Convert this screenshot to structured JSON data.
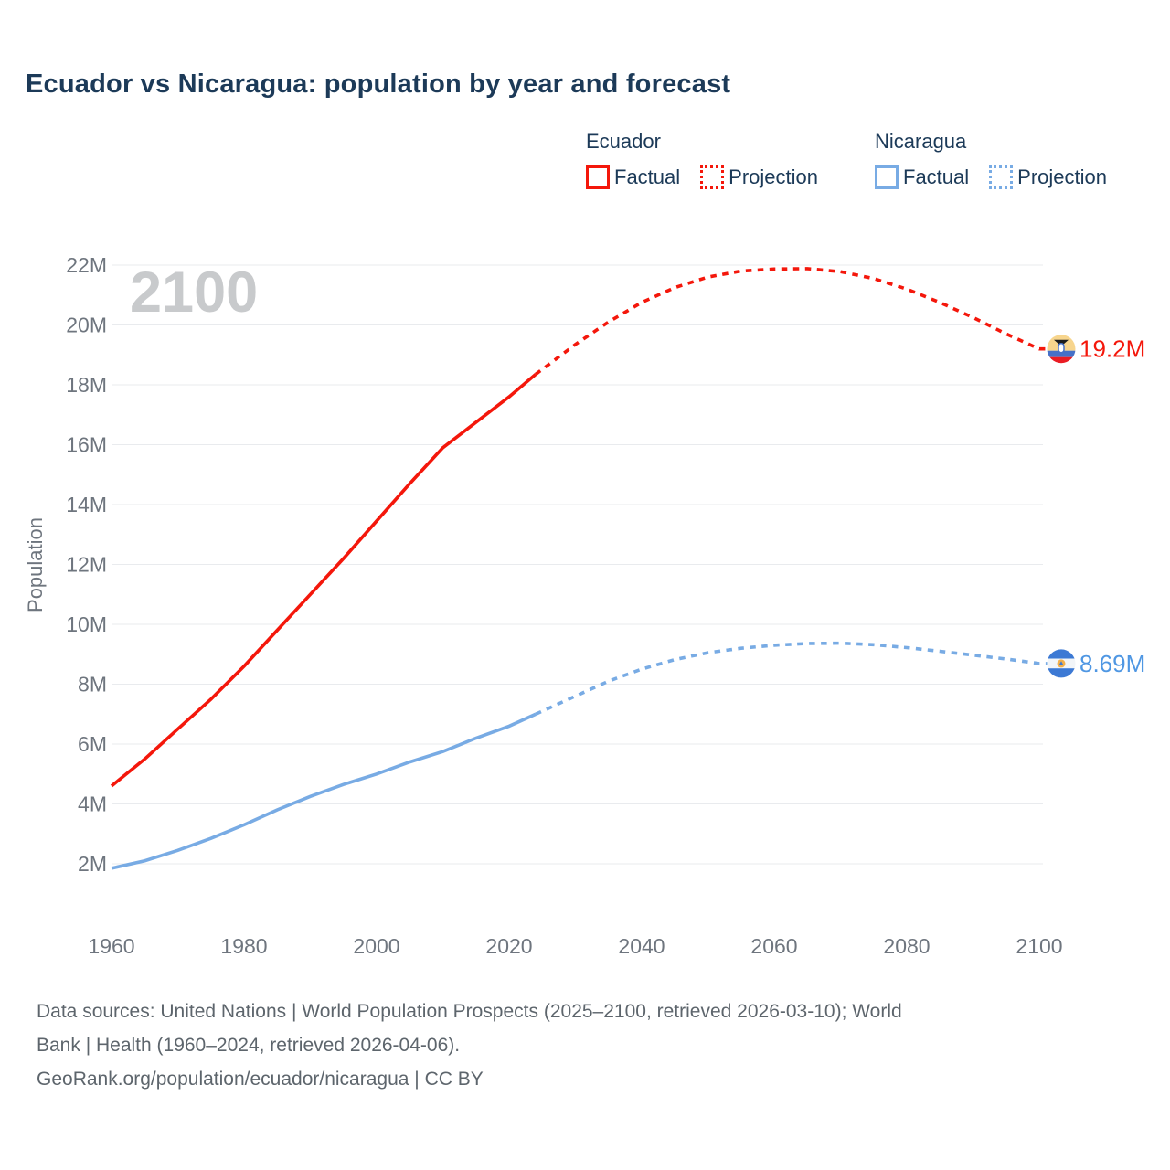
{
  "title": "Ecuador vs Nicaragua: population by year and forecast",
  "colors": {
    "title": "#1c3a58",
    "ecuador": "#f4170b",
    "nicaragua": "#78abe4",
    "nicaragua_label": "#4f97e3",
    "tick": "#6e757e",
    "grid": "#e9ebee",
    "watermark": "#c8cacc",
    "footer": "#5d656c"
  },
  "legend": {
    "groups": [
      {
        "name": "Ecuador",
        "color": "#f4170b",
        "items": [
          {
            "label": "Factual",
            "style": "solid"
          },
          {
            "label": "Projection",
            "style": "dotted"
          }
        ]
      },
      {
        "name": "Nicaragua",
        "color": "#78abe4",
        "items": [
          {
            "label": "Factual",
            "style": "solid"
          },
          {
            "label": "Projection",
            "style": "dotted"
          }
        ]
      }
    ]
  },
  "chart_data": {
    "type": "line",
    "title": "Ecuador vs Nicaragua: population by year and forecast",
    "xlabel": "",
    "ylabel": "Population",
    "watermark": "2100",
    "xlim": [
      1960,
      2100
    ],
    "ylim_millions": [
      2,
      22
    ],
    "grid": true,
    "x_ticks": [
      1960,
      1980,
      2000,
      2020,
      2040,
      2060,
      2080,
      2100
    ],
    "y_ticks": [
      {
        "value": 2,
        "label": "2M"
      },
      {
        "value": 4,
        "label": "4M"
      },
      {
        "value": 6,
        "label": "6M"
      },
      {
        "value": 8,
        "label": "8M"
      },
      {
        "value": 10,
        "label": "10M"
      },
      {
        "value": 12,
        "label": "12M"
      },
      {
        "value": 14,
        "label": "14M"
      },
      {
        "value": 16,
        "label": "16M"
      },
      {
        "value": 18,
        "label": "18M"
      },
      {
        "value": 20,
        "label": "20M"
      },
      {
        "value": 22,
        "label": "22M"
      }
    ],
    "series": [
      {
        "id": "ecuador-factual",
        "name": "Ecuador Factual",
        "color": "#f4170b",
        "style": "solid",
        "extend_to_flag": false,
        "points": [
          [
            1960,
            4.6
          ],
          [
            1965,
            5.5
          ],
          [
            1970,
            6.5
          ],
          [
            1975,
            7.5
          ],
          [
            1980,
            8.6
          ],
          [
            1985,
            9.8
          ],
          [
            1990,
            11.0
          ],
          [
            1995,
            12.2
          ],
          [
            2000,
            13.45
          ],
          [
            2005,
            14.7
          ],
          [
            2010,
            15.9
          ],
          [
            2015,
            16.75
          ],
          [
            2020,
            17.6
          ],
          [
            2024,
            18.35
          ]
        ]
      },
      {
        "id": "ecuador-projection",
        "name": "Ecuador Projection",
        "color": "#f4170b",
        "style": "dotted",
        "extend_to_flag": true,
        "points": [
          [
            2024,
            18.35
          ],
          [
            2030,
            19.35
          ],
          [
            2035,
            20.1
          ],
          [
            2040,
            20.75
          ],
          [
            2045,
            21.25
          ],
          [
            2050,
            21.6
          ],
          [
            2055,
            21.8
          ],
          [
            2060,
            21.87
          ],
          [
            2065,
            21.88
          ],
          [
            2070,
            21.78
          ],
          [
            2075,
            21.55
          ],
          [
            2080,
            21.2
          ],
          [
            2085,
            20.75
          ],
          [
            2090,
            20.25
          ],
          [
            2095,
            19.7
          ],
          [
            2100,
            19.2
          ]
        ]
      },
      {
        "id": "nicaragua-factual",
        "name": "Nicaragua Factual",
        "color": "#78abe4",
        "style": "solid",
        "extend_to_flag": false,
        "points": [
          [
            1960,
            1.85
          ],
          [
            1965,
            2.1
          ],
          [
            1970,
            2.45
          ],
          [
            1975,
            2.85
          ],
          [
            1980,
            3.3
          ],
          [
            1985,
            3.8
          ],
          [
            1990,
            4.25
          ],
          [
            1995,
            4.65
          ],
          [
            2000,
            5.0
          ],
          [
            2005,
            5.4
          ],
          [
            2010,
            5.75
          ],
          [
            2015,
            6.2
          ],
          [
            2020,
            6.6
          ],
          [
            2024,
            7.0
          ]
        ]
      },
      {
        "id": "nicaragua-projection",
        "name": "Nicaragua Projection",
        "color": "#78abe4",
        "style": "dotted",
        "extend_to_flag": true,
        "points": [
          [
            2024,
            7.0
          ],
          [
            2030,
            7.6
          ],
          [
            2035,
            8.1
          ],
          [
            2040,
            8.5
          ],
          [
            2045,
            8.82
          ],
          [
            2050,
            9.05
          ],
          [
            2055,
            9.2
          ],
          [
            2060,
            9.3
          ],
          [
            2065,
            9.36
          ],
          [
            2070,
            9.37
          ],
          [
            2075,
            9.32
          ],
          [
            2080,
            9.22
          ],
          [
            2085,
            9.1
          ],
          [
            2090,
            8.97
          ],
          [
            2095,
            8.84
          ],
          [
            2100,
            8.69
          ]
        ]
      }
    ],
    "end_labels": [
      {
        "flag": "ecuador",
        "text": "19.2M",
        "value_m": 19.2,
        "color": "#f4170b"
      },
      {
        "flag": "nicaragua",
        "text": "8.69M",
        "value_m": 8.69,
        "color": "#4f97e3"
      }
    ]
  },
  "footer": {
    "lines": [
      "Data sources: United Nations | World Population Prospects (2025–2100, retrieved 2026-03-10); World",
      "Bank | Health (1960–2024, retrieved 2026-04-06).",
      "GeoRank.org/population/ecuador/nicaragua | CC BY"
    ]
  }
}
